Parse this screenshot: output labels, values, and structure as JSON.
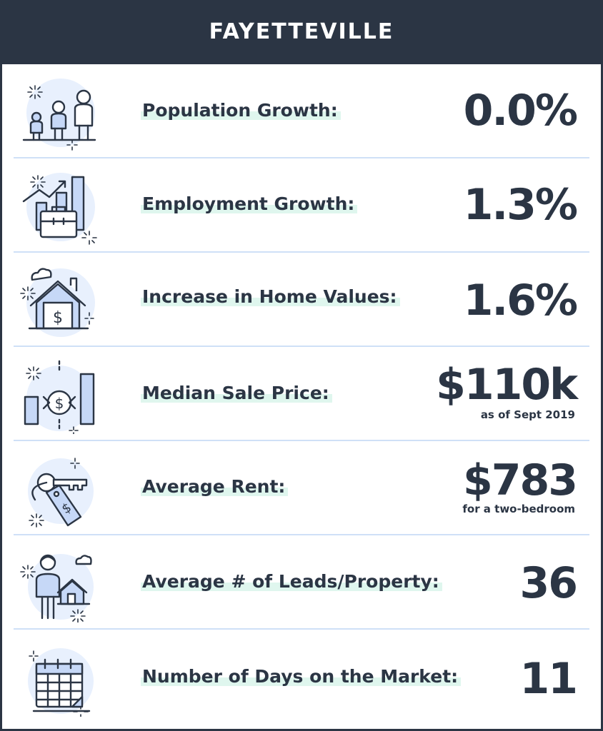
{
  "title": "FAYETTEVILLE",
  "colors": {
    "header_bg": "#2b3544",
    "text": "#2b3544",
    "icon_fill": "#c6d8f7",
    "icon_bg": "#e8f0fd",
    "highlight": "#dff6ee",
    "divider": "#cfe0f7"
  },
  "stats": [
    {
      "icon": "population-icon",
      "label": "Population Growth:",
      "value": "0.0%",
      "note": ""
    },
    {
      "icon": "employment-chart-icon",
      "label": "Employment Growth:",
      "value": "1.3%",
      "note": ""
    },
    {
      "icon": "house-dollar-icon",
      "label": "Increase in Home Values:",
      "value": "1.6%",
      "note": ""
    },
    {
      "icon": "price-chart-icon",
      "label": "Median Sale Price:",
      "value": "$110k",
      "note": "as  of Sept 2019"
    },
    {
      "icon": "key-tag-icon",
      "label": "Average Rent:",
      "value": "$783",
      "note": "for a two-bedroom"
    },
    {
      "icon": "agent-house-icon",
      "label": "Average # of Leads/Property:",
      "value": "36",
      "note": ""
    },
    {
      "icon": "calendar-icon",
      "label": "Number of Days on the Market:",
      "value": "11",
      "note": ""
    }
  ]
}
